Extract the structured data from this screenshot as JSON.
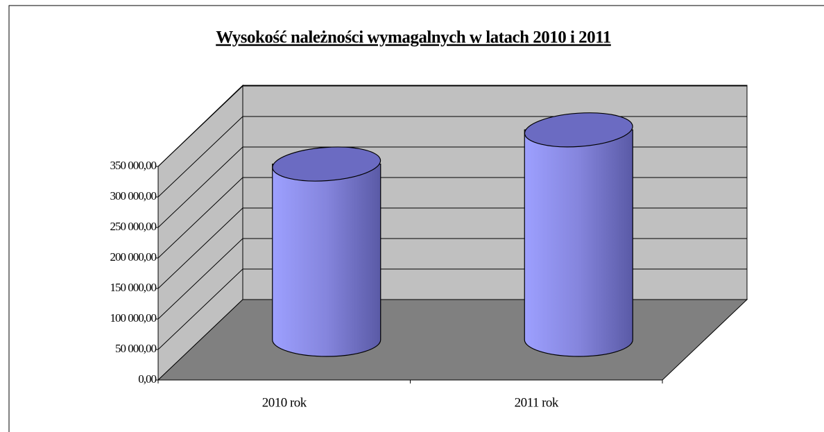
{
  "chart_data": {
    "type": "bar3d",
    "title": "Wysokość należności wymagalnych w latach 2010 i 2011",
    "categories": [
      "2010 rok",
      "2011 rok"
    ],
    "values": [
      288000,
      344000
    ],
    "color": "#9999ff",
    "ylim": [
      0,
      350000
    ],
    "yticks": [
      {
        "value": 0,
        "label": "0,00"
      },
      {
        "value": 50000,
        "label": "50 000,00"
      },
      {
        "value": 100000,
        "label": "100 000,00"
      },
      {
        "value": 150000,
        "label": "150 000,00"
      },
      {
        "value": 200000,
        "label": "200 000,00"
      },
      {
        "value": 250000,
        "label": "250 000,00"
      },
      {
        "value": 300000,
        "label": "300 000,00"
      },
      {
        "value": 350000,
        "label": "350 000,00"
      }
    ],
    "grid": true
  }
}
